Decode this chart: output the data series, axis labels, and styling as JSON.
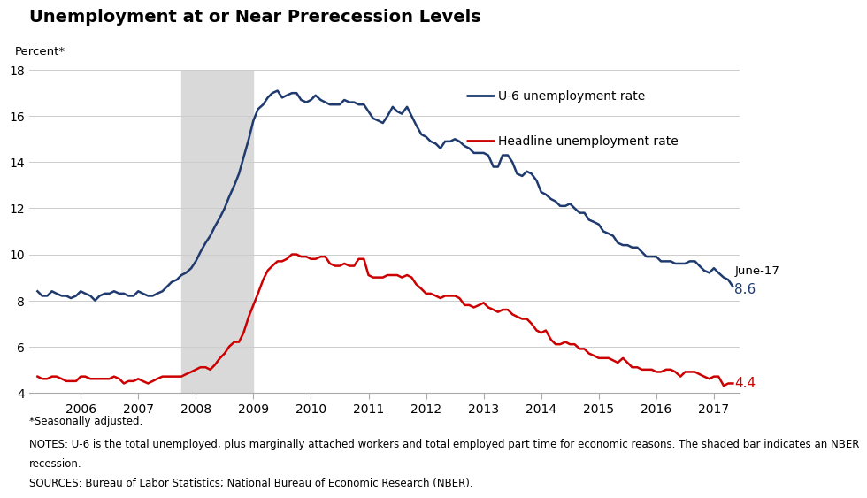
{
  "title": "Unemployment at or Near Prerecession Levels",
  "ylabel": "Percent*",
  "ylim": [
    4,
    18
  ],
  "yticks": [
    4,
    6,
    8,
    10,
    12,
    14,
    16,
    18
  ],
  "recession_start": 2007.75,
  "recession_end": 2009.0,
  "recession_color": "#d9d9d9",
  "u6_color": "#1f3a6e",
  "headline_color": "#cc0000",
  "u6_label": "U-6 unemployment rate",
  "headline_label": "Headline unemployment rate",
  "annotation_label": "June-17",
  "annotation_u6": 8.6,
  "annotation_headline": 4.4,
  "note1": "*Seasonally adjusted.",
  "note2": "NOTES: U-6 is the total unemployed, plus marginally attached workers and total employed part time for economic reasons. The shaded bar indicates an NBER recession.",
  "note3": "SOURCES: Bureau of Labor Statistics; National Bureau of Economic Research (NBER).",
  "xlim": [
    2005.1,
    2017.45
  ],
  "xtick_years": [
    2006,
    2007,
    2008,
    2009,
    2010,
    2011,
    2012,
    2013,
    2014,
    2015,
    2016,
    2017
  ],
  "u6_data": [
    [
      2005.25,
      8.4
    ],
    [
      2005.33,
      8.2
    ],
    [
      2005.42,
      8.2
    ],
    [
      2005.5,
      8.4
    ],
    [
      2005.58,
      8.3
    ],
    [
      2005.67,
      8.2
    ],
    [
      2005.75,
      8.2
    ],
    [
      2005.83,
      8.1
    ],
    [
      2005.92,
      8.2
    ],
    [
      2006.0,
      8.4
    ],
    [
      2006.08,
      8.3
    ],
    [
      2006.17,
      8.2
    ],
    [
      2006.25,
      8.0
    ],
    [
      2006.33,
      8.2
    ],
    [
      2006.42,
      8.3
    ],
    [
      2006.5,
      8.3
    ],
    [
      2006.58,
      8.4
    ],
    [
      2006.67,
      8.3
    ],
    [
      2006.75,
      8.3
    ],
    [
      2006.83,
      8.2
    ],
    [
      2006.92,
      8.2
    ],
    [
      2007.0,
      8.4
    ],
    [
      2007.08,
      8.3
    ],
    [
      2007.17,
      8.2
    ],
    [
      2007.25,
      8.2
    ],
    [
      2007.33,
      8.3
    ],
    [
      2007.42,
      8.4
    ],
    [
      2007.5,
      8.6
    ],
    [
      2007.58,
      8.8
    ],
    [
      2007.67,
      8.9
    ],
    [
      2007.75,
      9.1
    ],
    [
      2007.83,
      9.2
    ],
    [
      2007.92,
      9.4
    ],
    [
      2008.0,
      9.7
    ],
    [
      2008.08,
      10.1
    ],
    [
      2008.17,
      10.5
    ],
    [
      2008.25,
      10.8
    ],
    [
      2008.33,
      11.2
    ],
    [
      2008.42,
      11.6
    ],
    [
      2008.5,
      12.0
    ],
    [
      2008.58,
      12.5
    ],
    [
      2008.67,
      13.0
    ],
    [
      2008.75,
      13.5
    ],
    [
      2008.83,
      14.2
    ],
    [
      2008.92,
      15.0
    ],
    [
      2009.0,
      15.8
    ],
    [
      2009.08,
      16.3
    ],
    [
      2009.17,
      16.5
    ],
    [
      2009.25,
      16.8
    ],
    [
      2009.33,
      17.0
    ],
    [
      2009.42,
      17.1
    ],
    [
      2009.5,
      16.8
    ],
    [
      2009.58,
      16.9
    ],
    [
      2009.67,
      17.0
    ],
    [
      2009.75,
      17.0
    ],
    [
      2009.83,
      16.7
    ],
    [
      2009.92,
      16.6
    ],
    [
      2010.0,
      16.7
    ],
    [
      2010.08,
      16.9
    ],
    [
      2010.17,
      16.7
    ],
    [
      2010.25,
      16.6
    ],
    [
      2010.33,
      16.5
    ],
    [
      2010.42,
      16.5
    ],
    [
      2010.5,
      16.5
    ],
    [
      2010.58,
      16.7
    ],
    [
      2010.67,
      16.6
    ],
    [
      2010.75,
      16.6
    ],
    [
      2010.83,
      16.5
    ],
    [
      2010.92,
      16.5
    ],
    [
      2011.0,
      16.2
    ],
    [
      2011.08,
      15.9
    ],
    [
      2011.17,
      15.8
    ],
    [
      2011.25,
      15.7
    ],
    [
      2011.33,
      16.0
    ],
    [
      2011.42,
      16.4
    ],
    [
      2011.5,
      16.2
    ],
    [
      2011.58,
      16.1
    ],
    [
      2011.67,
      16.4
    ],
    [
      2011.75,
      16.0
    ],
    [
      2011.83,
      15.6
    ],
    [
      2011.92,
      15.2
    ],
    [
      2012.0,
      15.1
    ],
    [
      2012.08,
      14.9
    ],
    [
      2012.17,
      14.8
    ],
    [
      2012.25,
      14.6
    ],
    [
      2012.33,
      14.9
    ],
    [
      2012.42,
      14.9
    ],
    [
      2012.5,
      15.0
    ],
    [
      2012.58,
      14.9
    ],
    [
      2012.67,
      14.7
    ],
    [
      2012.75,
      14.6
    ],
    [
      2012.83,
      14.4
    ],
    [
      2012.92,
      14.4
    ],
    [
      2013.0,
      14.4
    ],
    [
      2013.08,
      14.3
    ],
    [
      2013.17,
      13.8
    ],
    [
      2013.25,
      13.8
    ],
    [
      2013.33,
      14.3
    ],
    [
      2013.42,
      14.3
    ],
    [
      2013.5,
      14.0
    ],
    [
      2013.58,
      13.5
    ],
    [
      2013.67,
      13.4
    ],
    [
      2013.75,
      13.6
    ],
    [
      2013.83,
      13.5
    ],
    [
      2013.92,
      13.2
    ],
    [
      2014.0,
      12.7
    ],
    [
      2014.08,
      12.6
    ],
    [
      2014.17,
      12.4
    ],
    [
      2014.25,
      12.3
    ],
    [
      2014.33,
      12.1
    ],
    [
      2014.42,
      12.1
    ],
    [
      2014.5,
      12.2
    ],
    [
      2014.58,
      12.0
    ],
    [
      2014.67,
      11.8
    ],
    [
      2014.75,
      11.8
    ],
    [
      2014.83,
      11.5
    ],
    [
      2014.92,
      11.4
    ],
    [
      2015.0,
      11.3
    ],
    [
      2015.08,
      11.0
    ],
    [
      2015.17,
      10.9
    ],
    [
      2015.25,
      10.8
    ],
    [
      2015.33,
      10.5
    ],
    [
      2015.42,
      10.4
    ],
    [
      2015.5,
      10.4
    ],
    [
      2015.58,
      10.3
    ],
    [
      2015.67,
      10.3
    ],
    [
      2015.75,
      10.1
    ],
    [
      2015.83,
      9.9
    ],
    [
      2015.92,
      9.9
    ],
    [
      2016.0,
      9.9
    ],
    [
      2016.08,
      9.7
    ],
    [
      2016.17,
      9.7
    ],
    [
      2016.25,
      9.7
    ],
    [
      2016.33,
      9.6
    ],
    [
      2016.42,
      9.6
    ],
    [
      2016.5,
      9.6
    ],
    [
      2016.58,
      9.7
    ],
    [
      2016.67,
      9.7
    ],
    [
      2016.75,
      9.5
    ],
    [
      2016.83,
      9.3
    ],
    [
      2016.92,
      9.2
    ],
    [
      2017.0,
      9.4
    ],
    [
      2017.08,
      9.2
    ],
    [
      2017.17,
      9.0
    ],
    [
      2017.25,
      8.9
    ],
    [
      2017.33,
      8.6
    ]
  ],
  "headline_data": [
    [
      2005.25,
      4.7
    ],
    [
      2005.33,
      4.6
    ],
    [
      2005.42,
      4.6
    ],
    [
      2005.5,
      4.7
    ],
    [
      2005.58,
      4.7
    ],
    [
      2005.67,
      4.6
    ],
    [
      2005.75,
      4.5
    ],
    [
      2005.83,
      4.5
    ],
    [
      2005.92,
      4.5
    ],
    [
      2006.0,
      4.7
    ],
    [
      2006.08,
      4.7
    ],
    [
      2006.17,
      4.6
    ],
    [
      2006.25,
      4.6
    ],
    [
      2006.33,
      4.6
    ],
    [
      2006.42,
      4.6
    ],
    [
      2006.5,
      4.6
    ],
    [
      2006.58,
      4.7
    ],
    [
      2006.67,
      4.6
    ],
    [
      2006.75,
      4.4
    ],
    [
      2006.83,
      4.5
    ],
    [
      2006.92,
      4.5
    ],
    [
      2007.0,
      4.6
    ],
    [
      2007.08,
      4.5
    ],
    [
      2007.17,
      4.4
    ],
    [
      2007.25,
      4.5
    ],
    [
      2007.33,
      4.6
    ],
    [
      2007.42,
      4.7
    ],
    [
      2007.5,
      4.7
    ],
    [
      2007.58,
      4.7
    ],
    [
      2007.67,
      4.7
    ],
    [
      2007.75,
      4.7
    ],
    [
      2007.83,
      4.8
    ],
    [
      2007.92,
      4.9
    ],
    [
      2008.0,
      5.0
    ],
    [
      2008.08,
      5.1
    ],
    [
      2008.17,
      5.1
    ],
    [
      2008.25,
      5.0
    ],
    [
      2008.33,
      5.2
    ],
    [
      2008.42,
      5.5
    ],
    [
      2008.5,
      5.7
    ],
    [
      2008.58,
      6.0
    ],
    [
      2008.67,
      6.2
    ],
    [
      2008.75,
      6.2
    ],
    [
      2008.83,
      6.6
    ],
    [
      2008.92,
      7.3
    ],
    [
      2009.0,
      7.8
    ],
    [
      2009.08,
      8.3
    ],
    [
      2009.17,
      8.9
    ],
    [
      2009.25,
      9.3
    ],
    [
      2009.33,
      9.5
    ],
    [
      2009.42,
      9.7
    ],
    [
      2009.5,
      9.7
    ],
    [
      2009.58,
      9.8
    ],
    [
      2009.67,
      10.0
    ],
    [
      2009.75,
      10.0
    ],
    [
      2009.83,
      9.9
    ],
    [
      2009.92,
      9.9
    ],
    [
      2010.0,
      9.8
    ],
    [
      2010.08,
      9.8
    ],
    [
      2010.17,
      9.9
    ],
    [
      2010.25,
      9.9
    ],
    [
      2010.33,
      9.6
    ],
    [
      2010.42,
      9.5
    ],
    [
      2010.5,
      9.5
    ],
    [
      2010.58,
      9.6
    ],
    [
      2010.67,
      9.5
    ],
    [
      2010.75,
      9.5
    ],
    [
      2010.83,
      9.8
    ],
    [
      2010.92,
      9.8
    ],
    [
      2011.0,
      9.1
    ],
    [
      2011.08,
      9.0
    ],
    [
      2011.17,
      9.0
    ],
    [
      2011.25,
      9.0
    ],
    [
      2011.33,
      9.1
    ],
    [
      2011.42,
      9.1
    ],
    [
      2011.5,
      9.1
    ],
    [
      2011.58,
      9.0
    ],
    [
      2011.67,
      9.1
    ],
    [
      2011.75,
      9.0
    ],
    [
      2011.83,
      8.7
    ],
    [
      2011.92,
      8.5
    ],
    [
      2012.0,
      8.3
    ],
    [
      2012.08,
      8.3
    ],
    [
      2012.17,
      8.2
    ],
    [
      2012.25,
      8.1
    ],
    [
      2012.33,
      8.2
    ],
    [
      2012.42,
      8.2
    ],
    [
      2012.5,
      8.2
    ],
    [
      2012.58,
      8.1
    ],
    [
      2012.67,
      7.8
    ],
    [
      2012.75,
      7.8
    ],
    [
      2012.83,
      7.7
    ],
    [
      2012.92,
      7.8
    ],
    [
      2013.0,
      7.9
    ],
    [
      2013.08,
      7.7
    ],
    [
      2013.17,
      7.6
    ],
    [
      2013.25,
      7.5
    ],
    [
      2013.33,
      7.6
    ],
    [
      2013.42,
      7.6
    ],
    [
      2013.5,
      7.4
    ],
    [
      2013.58,
      7.3
    ],
    [
      2013.67,
      7.2
    ],
    [
      2013.75,
      7.2
    ],
    [
      2013.83,
      7.0
    ],
    [
      2013.92,
      6.7
    ],
    [
      2014.0,
      6.6
    ],
    [
      2014.08,
      6.7
    ],
    [
      2014.17,
      6.3
    ],
    [
      2014.25,
      6.1
    ],
    [
      2014.33,
      6.1
    ],
    [
      2014.42,
      6.2
    ],
    [
      2014.5,
      6.1
    ],
    [
      2014.58,
      6.1
    ],
    [
      2014.67,
      5.9
    ],
    [
      2014.75,
      5.9
    ],
    [
      2014.83,
      5.7
    ],
    [
      2014.92,
      5.6
    ],
    [
      2015.0,
      5.5
    ],
    [
      2015.08,
      5.5
    ],
    [
      2015.17,
      5.5
    ],
    [
      2015.25,
      5.4
    ],
    [
      2015.33,
      5.3
    ],
    [
      2015.42,
      5.5
    ],
    [
      2015.5,
      5.3
    ],
    [
      2015.58,
      5.1
    ],
    [
      2015.67,
      5.1
    ],
    [
      2015.75,
      5.0
    ],
    [
      2015.83,
      5.0
    ],
    [
      2015.92,
      5.0
    ],
    [
      2016.0,
      4.9
    ],
    [
      2016.08,
      4.9
    ],
    [
      2016.17,
      5.0
    ],
    [
      2016.25,
      5.0
    ],
    [
      2016.33,
      4.9
    ],
    [
      2016.42,
      4.7
    ],
    [
      2016.5,
      4.9
    ],
    [
      2016.58,
      4.9
    ],
    [
      2016.67,
      4.9
    ],
    [
      2016.75,
      4.8
    ],
    [
      2016.83,
      4.7
    ],
    [
      2016.92,
      4.6
    ],
    [
      2017.0,
      4.7
    ],
    [
      2017.08,
      4.7
    ],
    [
      2017.17,
      4.3
    ],
    [
      2017.25,
      4.4
    ],
    [
      2017.33,
      4.4
    ]
  ]
}
